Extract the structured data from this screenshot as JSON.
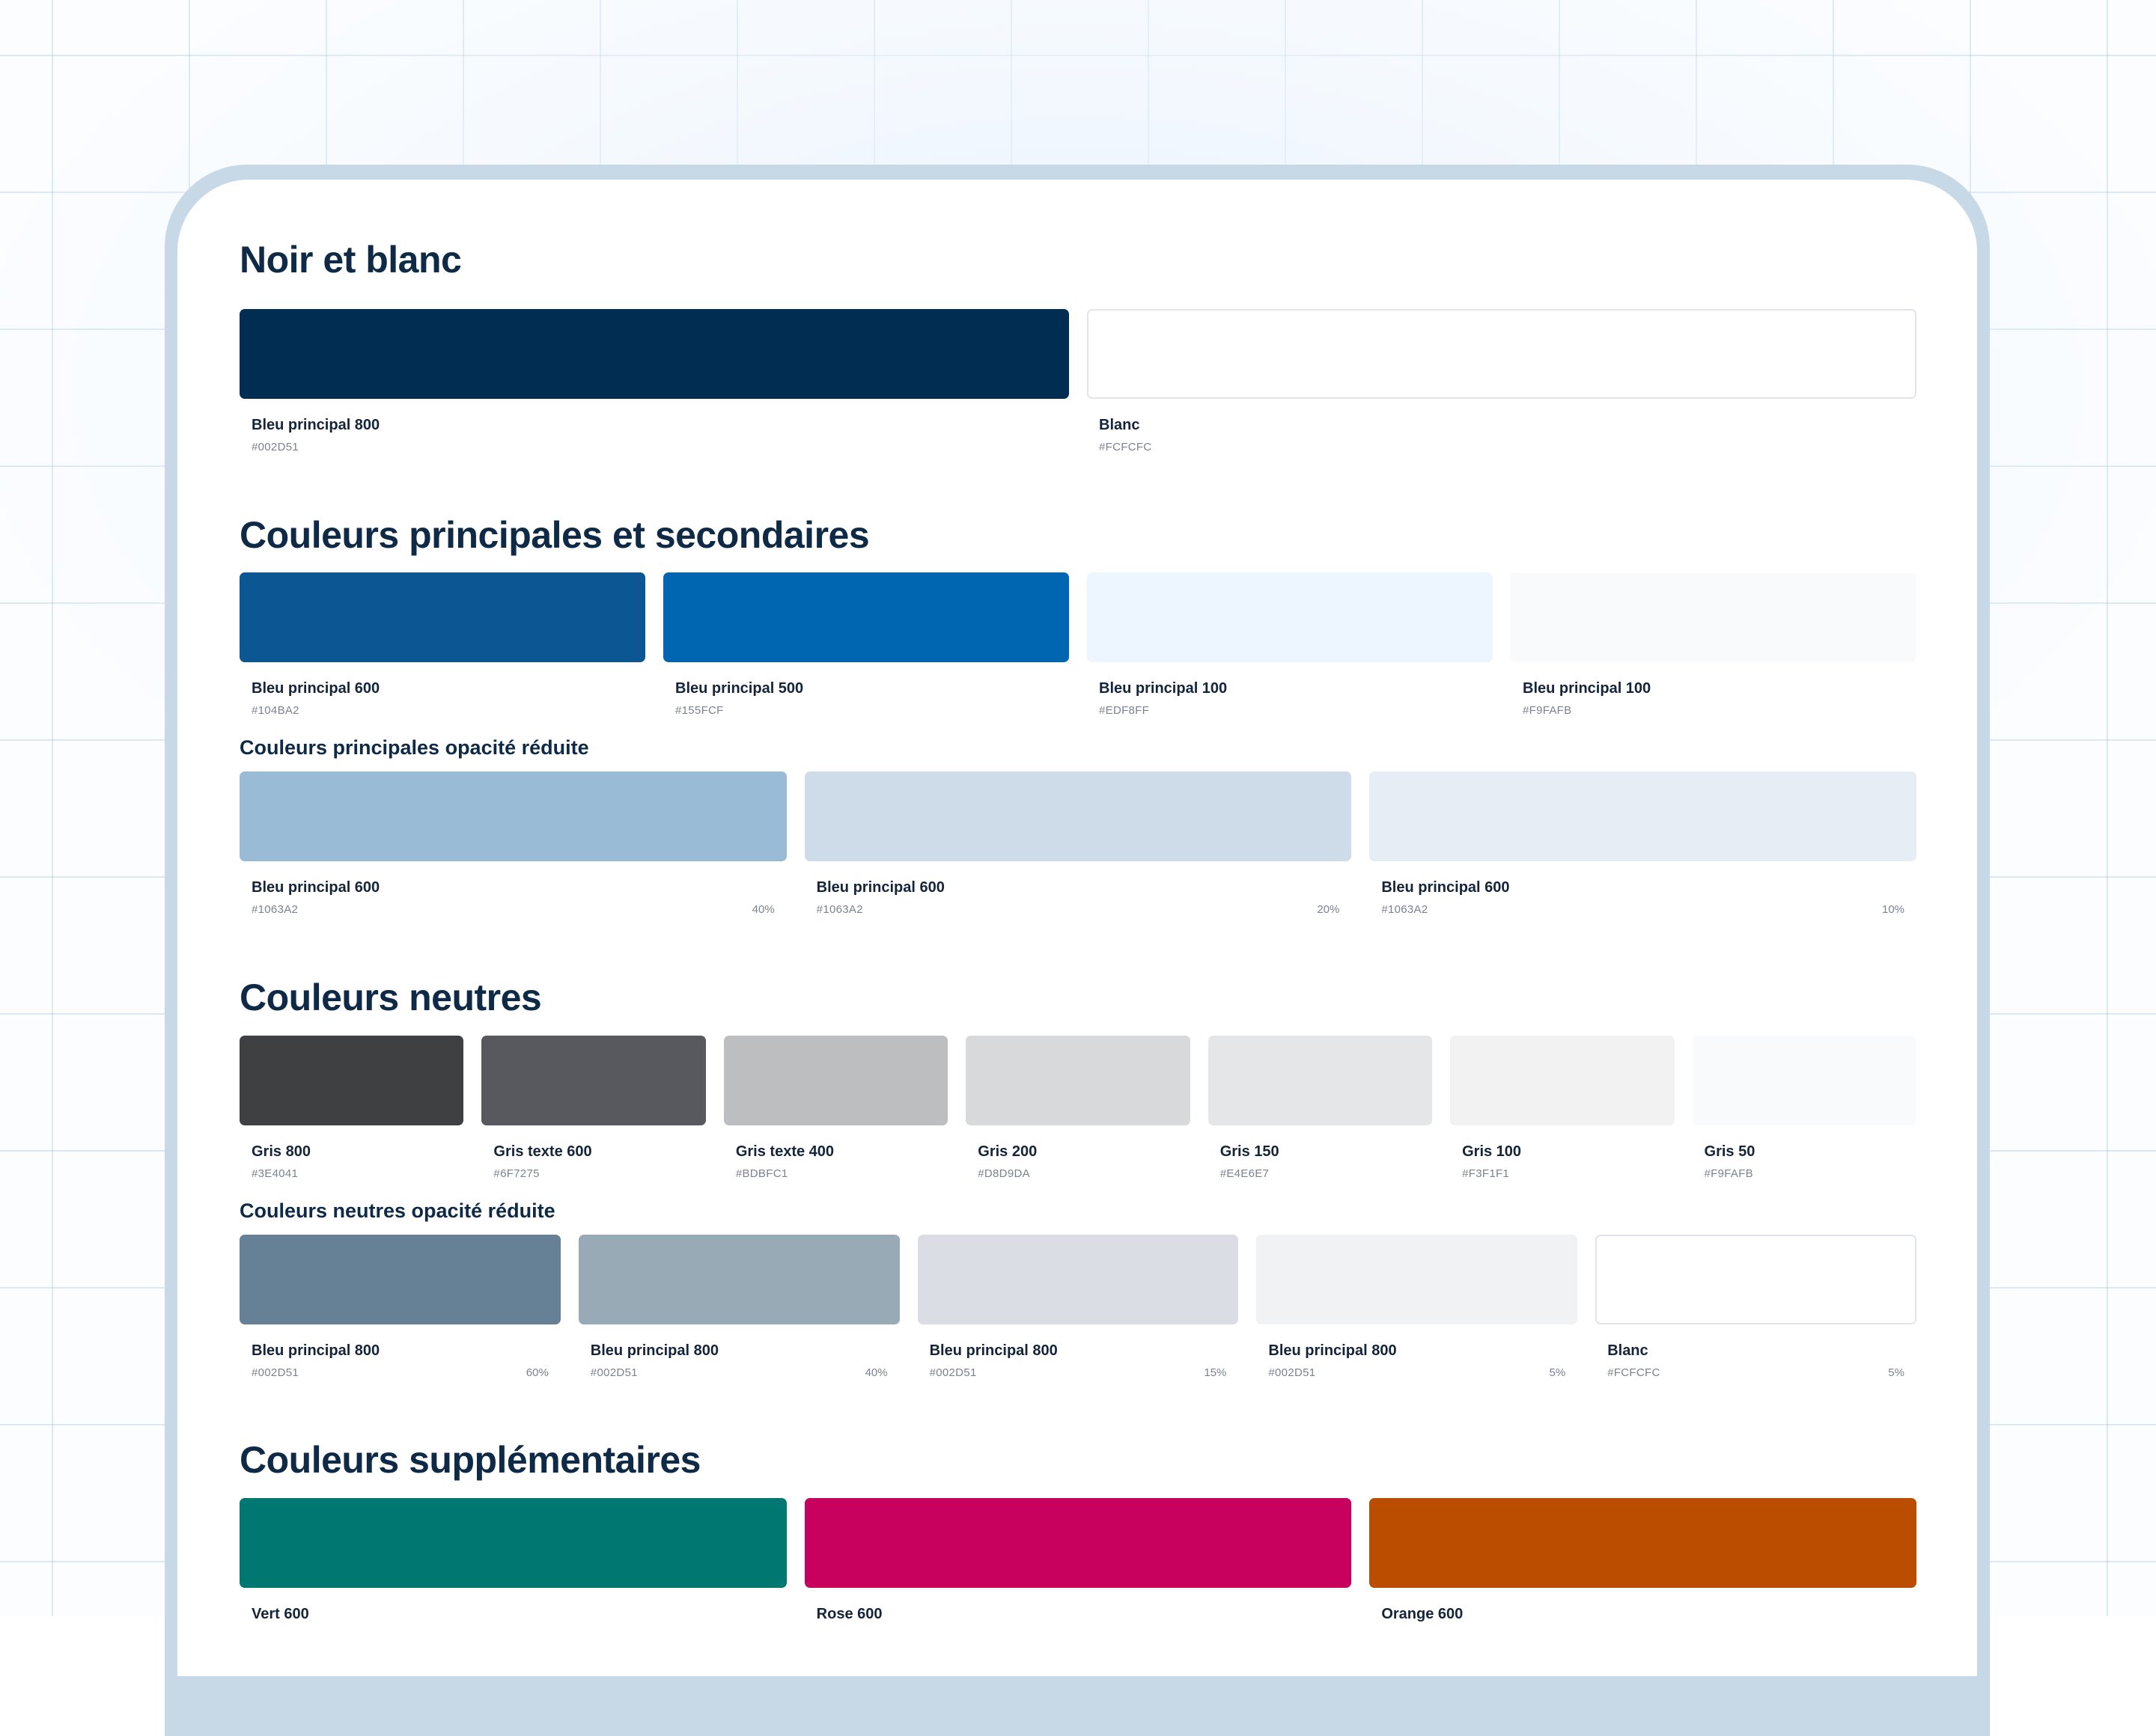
{
  "sections": [
    {
      "title": "Noir et blanc",
      "swatches": [
        {
          "name": "Bleu principal 800",
          "hex": "#002D51",
          "color": "#002D51"
        },
        {
          "name": "Blanc",
          "hex": "#FCFCFC",
          "color": "#FFFFFF"
        }
      ]
    },
    {
      "title": "Couleurs principales et secondaires",
      "swatches": [
        {
          "name": "Bleu principal 600",
          "hex": "#104BA2",
          "color": "#0D5694"
        },
        {
          "name": "Bleu principal 500",
          "hex": "#155FCF",
          "color": "#0166B1"
        },
        {
          "name": "Bleu principal 100",
          "hex": "#EDF8FF",
          "color": "#EDF6FE"
        },
        {
          "name": "Bleu principal 100",
          "hex": "#F9FAFB",
          "color": "#F9FAFB"
        }
      ],
      "subsection": {
        "title": "Couleurs principales opacité réduite",
        "swatches": [
          {
            "name": "Bleu principal 600",
            "hex": "#1063A2",
            "opacity": "40%",
            "color": "#9ABBD5"
          },
          {
            "name": "Bleu principal 600",
            "hex": "#1063A2",
            "opacity": "20%",
            "color": "#CDDCE8"
          },
          {
            "name": "Bleu principal 600",
            "hex": "#1063A2",
            "opacity": "10%",
            "color": "#E6EDF4"
          }
        ]
      }
    },
    {
      "title": "Couleurs neutres",
      "swatches": [
        {
          "name": "Gris 800",
          "hex": "#3E4041",
          "color": "#3E4041"
        },
        {
          "name": "Gris texte 600",
          "hex": "#6F7275",
          "color": "#58595E"
        },
        {
          "name": "Gris texte 400",
          "hex": "#BDBFC1",
          "color": "#BDBEC0"
        },
        {
          "name": "Gris 200",
          "hex": "#D8D9DA",
          "color": "#D8D9DA"
        },
        {
          "name": "Gris 150",
          "hex": "#E4E6E7",
          "color": "#E5E6E7"
        },
        {
          "name": "Gris 100",
          "hex": "#F3F1F1",
          "color": "#F3F2F2"
        },
        {
          "name": "Gris 50",
          "hex": "#F9FAFB",
          "color": "#F9FAFB"
        }
      ],
      "subsection": {
        "title": "Couleurs neutres opacité réduite",
        "swatches": [
          {
            "name": "Bleu principal 800",
            "hex": "#002D51",
            "opacity": "60%",
            "color": "#668196"
          },
          {
            "name": "Bleu principal 800",
            "hex": "#002D51",
            "opacity": "40%",
            "color": "#99AAB7"
          },
          {
            "name": "Bleu principal 800",
            "hex": "#002D51",
            "opacity": "15%",
            "color": "#DADEE4"
          },
          {
            "name": "Bleu principal 800",
            "hex": "#002D51",
            "opacity": "5%",
            "color": "#F1F2F4"
          },
          {
            "name": "Blanc",
            "hex": "#FCFCFC",
            "opacity": "5%",
            "color": "#FFFFFF"
          }
        ]
      }
    },
    {
      "title": "Couleurs supplémentaires",
      "swatches": [
        {
          "name": "Vert 600",
          "hex": "",
          "color": "#007770"
        },
        {
          "name": "Rose 600",
          "hex": "",
          "color": "#C8005E"
        },
        {
          "name": "Orange 600",
          "hex": "",
          "color": "#BB4D00"
        }
      ]
    }
  ]
}
